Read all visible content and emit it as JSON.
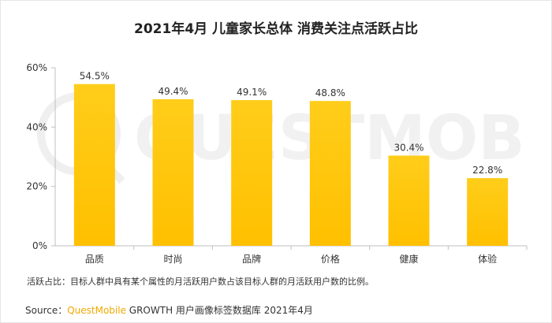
{
  "title": "2021年4月 儿童家长总体 消费关注点活跃占比",
  "watermark_text": "QUESTMOBILE",
  "note": "活跃占比：目标人群中具有某个属性的月活跃用户数占该目标人群的月活跃用户数的比例。",
  "source": {
    "prefix": "Source：",
    "brand": "QuestMobile",
    "rest": " GROWTH 用户画像标签数据库 2021年4月"
  },
  "colors": {
    "bar": "#ffc000",
    "bar_highlight": "#ffcd1a",
    "axis": "#bfbfbf",
    "grid": "#e6e6e6",
    "brand": "#f0a800"
  },
  "chart_data": {
    "type": "bar",
    "categories": [
      "品质",
      "时尚",
      "品牌",
      "价格",
      "健康",
      "体验"
    ],
    "values": [
      54.5,
      49.4,
      49.1,
      48.8,
      30.4,
      22.8
    ],
    "value_labels": [
      "54.5%",
      "49.4%",
      "49.1%",
      "48.8%",
      "30.4%",
      "22.8%"
    ],
    "yticks": [
      0,
      20,
      40,
      60
    ],
    "ytick_labels": [
      "0%",
      "20%",
      "40%",
      "60%"
    ],
    "ylim": [
      0,
      60
    ],
    "title": "2021年4月 儿童家长总体 消费关注点活跃占比",
    "xlabel": "",
    "ylabel": "",
    "grid": false
  }
}
